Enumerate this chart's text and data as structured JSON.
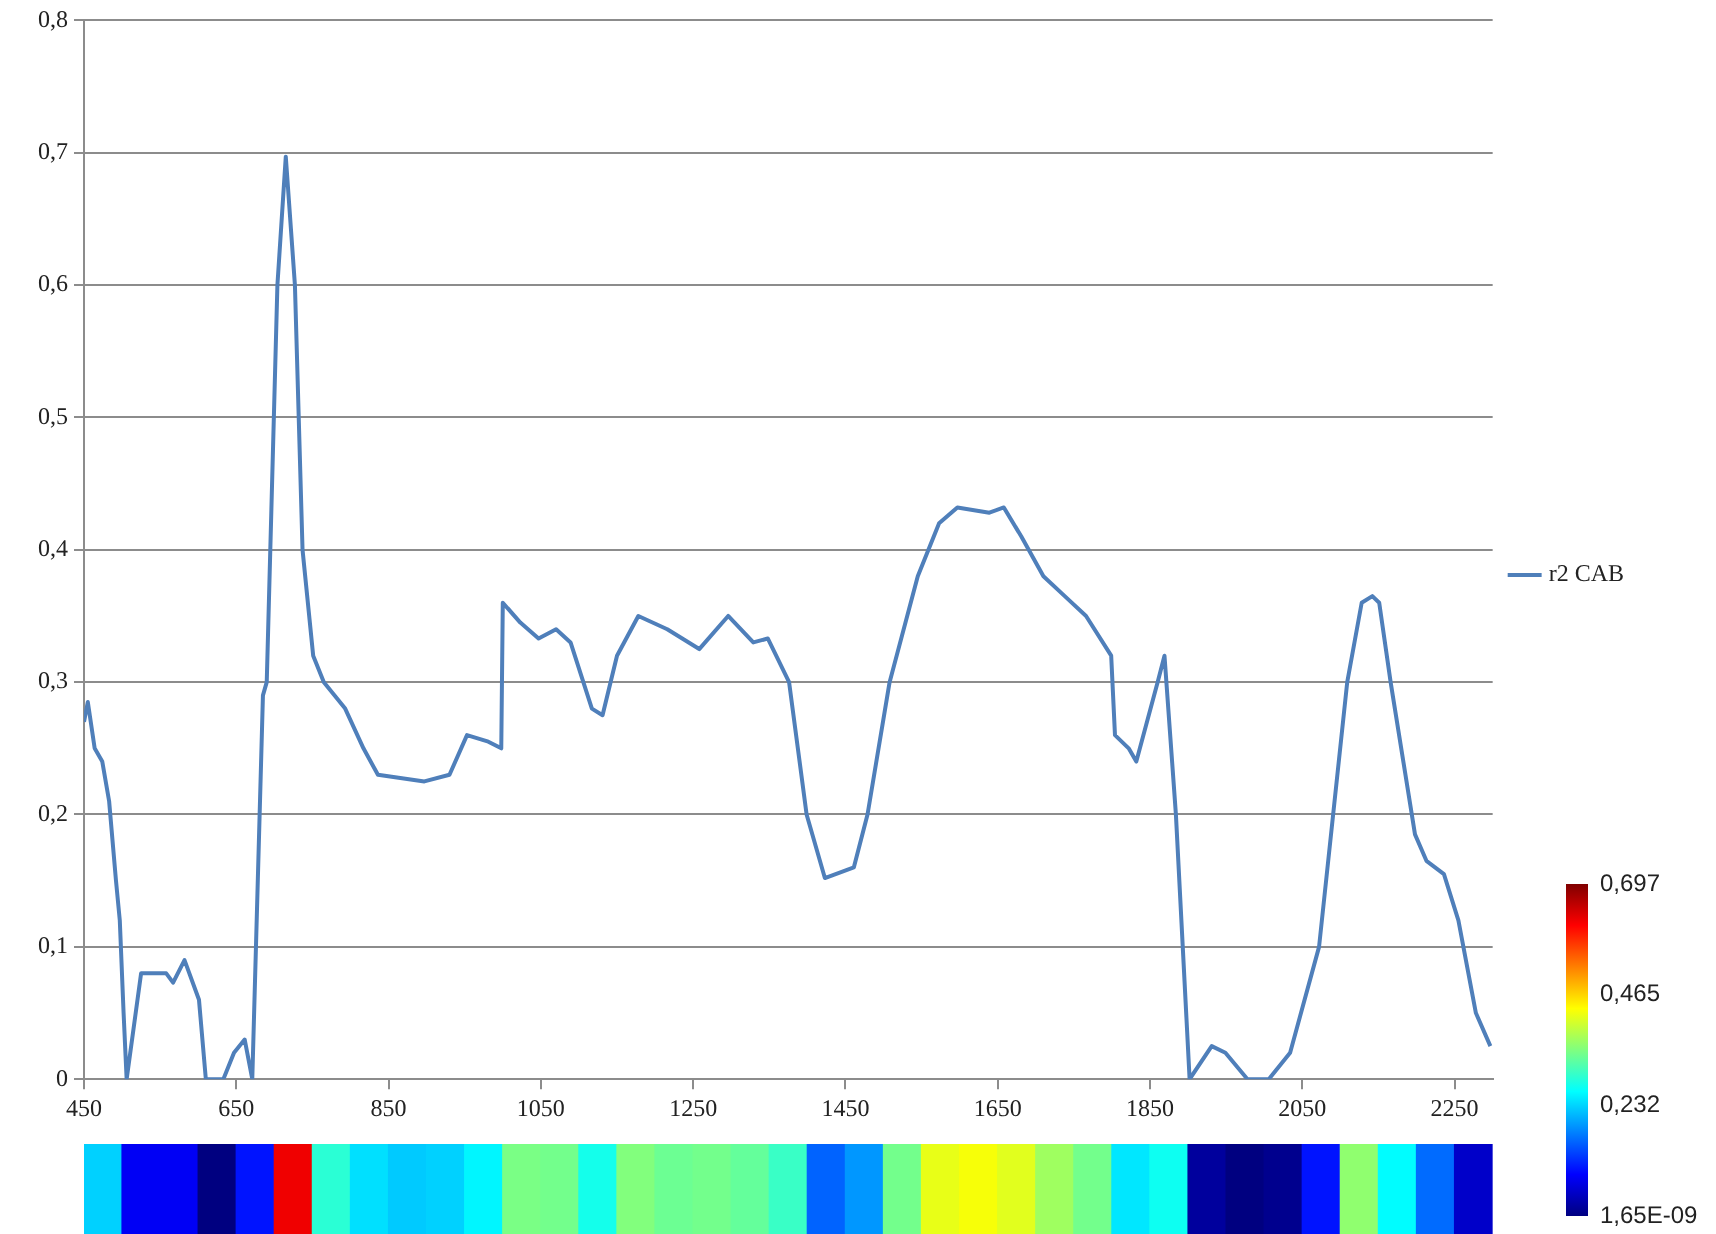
{
  "chart_data": [
    {
      "type": "line",
      "x": [
        450,
        455,
        464,
        474,
        483,
        492,
        497,
        502,
        506,
        525,
        558,
        567,
        582,
        601,
        610,
        633,
        647,
        661,
        671,
        685,
        690,
        704,
        715,
        727,
        737,
        751,
        765,
        793,
        817,
        836,
        897,
        930,
        953,
        981,
        998,
        1000,
        1023,
        1047,
        1070,
        1089,
        1117,
        1131,
        1150,
        1178,
        1216,
        1258,
        1296,
        1329,
        1348,
        1376,
        1399,
        1423,
        1461,
        1479,
        1508,
        1545,
        1573,
        1597,
        1639,
        1658,
        1681,
        1710,
        1738,
        1766,
        1799,
        1804,
        1822,
        1832,
        1860,
        1869,
        1884,
        1902,
        1931,
        1949,
        1978,
        2006,
        2034,
        2072,
        2109,
        2128,
        2142,
        2151,
        2166,
        2198,
        2213,
        2236,
        2255,
        2278,
        2297
      ],
      "series": [
        {
          "name": "r2 CAB",
          "color": "#4f7fba",
          "values": [
            0.27,
            0.285,
            0.25,
            0.24,
            0.21,
            0.15,
            0.12,
            0.05,
            0,
            0.08,
            0.08,
            0.073,
            0.09,
            0.06,
            0,
            0,
            0.02,
            0.03,
            0,
            0.29,
            0.3,
            0.6,
            0.697,
            0.6,
            0.4,
            0.32,
            0.3,
            0.28,
            0.25,
            0.23,
            0.225,
            0.23,
            0.26,
            0.255,
            0.25,
            0.36,
            0.345,
            0.333,
            0.34,
            0.33,
            0.28,
            0.275,
            0.32,
            0.35,
            0.34,
            0.325,
            0.35,
            0.33,
            0.333,
            0.3,
            0.2,
            0.152,
            0.16,
            0.2,
            0.3,
            0.38,
            0.42,
            0.432,
            0.428,
            0.432,
            0.41,
            0.38,
            0.365,
            0.35,
            0.32,
            0.26,
            0.25,
            0.24,
            0.3,
            0.32,
            0.2,
            0,
            0.025,
            0.02,
            0,
            0,
            0.02,
            0.1,
            0.3,
            0.36,
            0.365,
            0.36,
            0.3,
            0.185,
            0.165,
            0.155,
            0.12,
            0.05,
            0.025
          ]
        }
      ],
      "xlim": [
        450,
        2300
      ],
      "xticks": [
        450,
        650,
        850,
        1050,
        1250,
        1450,
        1650,
        1850,
        2050,
        2250
      ],
      "ylim": [
        0,
        0.8
      ],
      "yticks": [
        0,
        {
          "value": 0.1,
          "label": "0,1"
        },
        {
          "value": 0.2,
          "label": "0,2"
        },
        {
          "value": 0.3,
          "label": "0,3"
        },
        {
          "value": 0.4,
          "label": "0,4"
        },
        {
          "value": 0.5,
          "label": "0,5"
        },
        {
          "value": 0.6,
          "label": "0,6"
        },
        {
          "value": 0.7,
          "label": "0,7"
        },
        {
          "value": 0.8,
          "label": "0,8"
        }
      ],
      "grid": "y",
      "legend": "right",
      "marker": "none",
      "line_style": "solid"
    },
    {
      "type": "heatmap",
      "categories": [
        null,
        null,
        null,
        null,
        null,
        null,
        null,
        null,
        null,
        null,
        null,
        null,
        null,
        null,
        null,
        null,
        null,
        null,
        null,
        null,
        null,
        null,
        null,
        null,
        null,
        null,
        null,
        null,
        null,
        null,
        null,
        null,
        null,
        null,
        null,
        null,
        null
      ],
      "y_categories": [
        null
      ],
      "cells": [
        [
          0.23,
          0.08,
          0.08,
          0,
          0.1,
          0.62,
          0.29,
          0.24,
          0.225,
          0.23,
          0.255,
          0.345,
          0.34,
          0.275,
          0.35,
          0.335,
          0.34,
          0.33,
          0.3,
          0.155,
          0.19,
          0.34,
          0.42,
          0.43,
          0.415,
          0.37,
          0.34,
          0.245,
          0.27,
          0.02,
          0,
          0.01,
          0.1,
          0.36,
          0.26,
          0.16,
          0.05
        ]
      ],
      "clim": [
        1.65e-09,
        0.697
      ],
      "cticks": [
        {
          "value": 1.65e-09,
          "label": "1,65E-09"
        },
        {
          "value": 0.232,
          "label": "0,232"
        },
        {
          "value": 0.465,
          "label": "0,465"
        },
        {
          "value": 0.697,
          "label": "0,697"
        }
      ]
    }
  ]
}
